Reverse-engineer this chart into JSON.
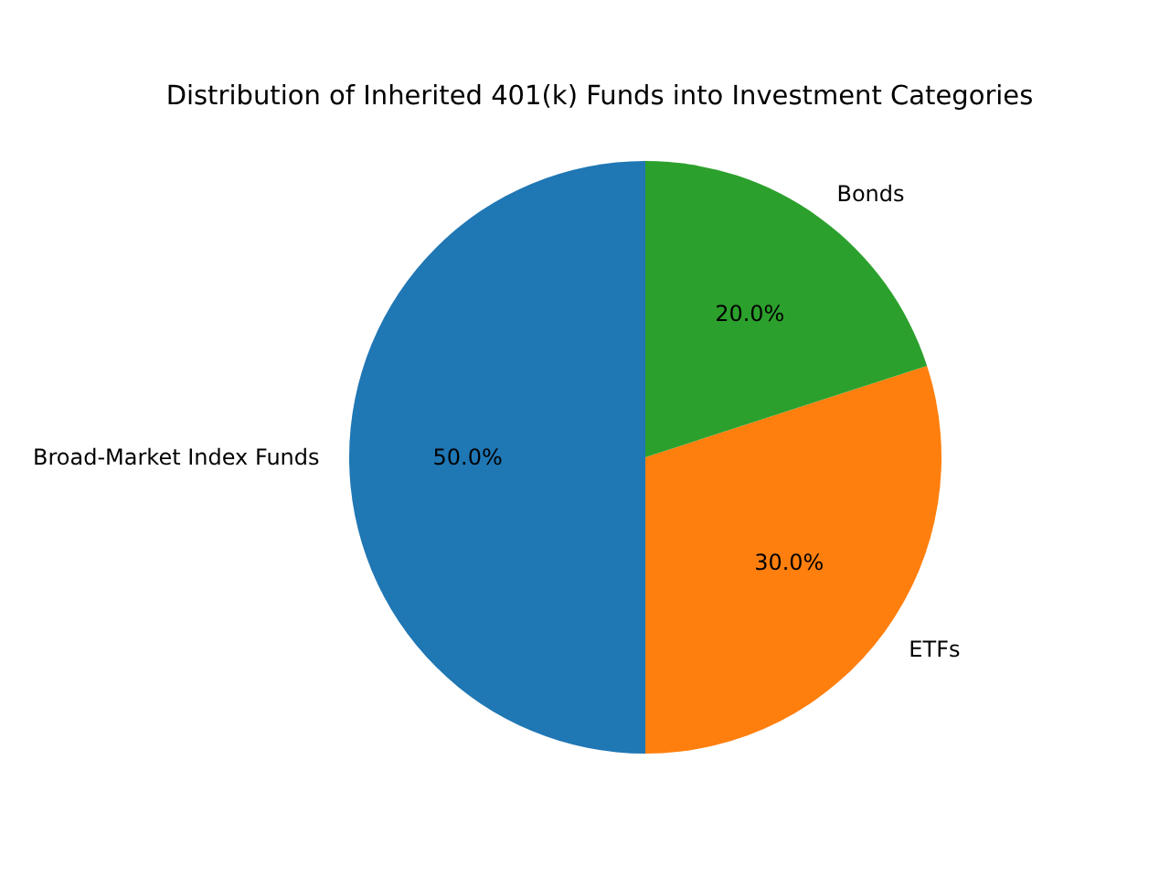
{
  "chart_data": {
    "type": "pie",
    "title": "Distribution of Inherited 401(k) Funds into Investment Categories",
    "categories": [
      "Broad-Market Index Funds",
      "ETFs",
      "Bonds"
    ],
    "values": [
      50,
      30,
      20
    ],
    "colors": [
      "#1f77b4",
      "#ff7f0e",
      "#2ca02c"
    ],
    "value_labels": [
      "50.0%",
      "30.0%",
      "20.0%"
    ]
  }
}
